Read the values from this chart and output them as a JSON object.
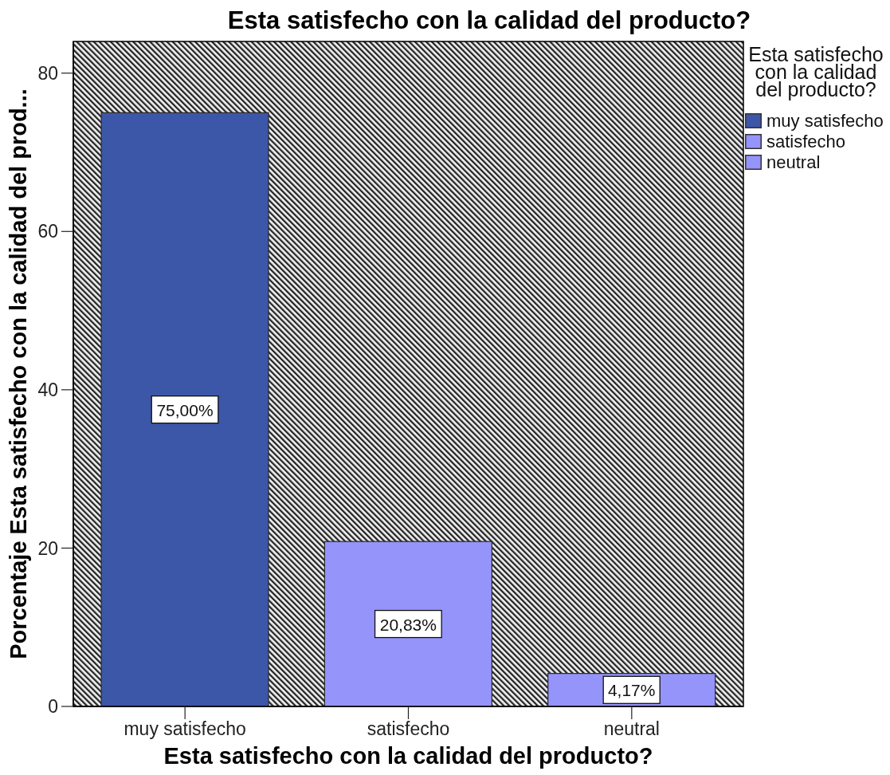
{
  "chart_data": {
    "type": "bar",
    "title": "Esta satisfecho con la calidad del producto?",
    "xlabel": "Esta satisfecho con la calidad del producto?",
    "ylabel": "Porcentaje Esta satisfecho con la calidad del prod...",
    "legend_title": "Esta satisfecho con la calidad del producto?",
    "categories": [
      "muy satisfecho",
      "satisfecho",
      "neutral"
    ],
    "stacked": true,
    "series": [
      {
        "name": "muy satisfecho",
        "color": "#3c56a8",
        "values": [
          75,
          null,
          null
        ],
        "value_labels": [
          "75,00%",
          null,
          null
        ]
      },
      {
        "name": "satisfecho",
        "color": "#9494fb",
        "values": [
          null,
          20.83,
          null
        ],
        "value_labels": [
          null,
          "20,83%",
          null
        ]
      },
      {
        "name": "neutral",
        "color": "#9494fb",
        "values": [
          null,
          null,
          4.17
        ],
        "value_labels": [
          null,
          null,
          "4,17%"
        ]
      }
    ],
    "ylim": [
      0,
      84
    ],
    "yticks": [
      0,
      20,
      40,
      60,
      80
    ],
    "legend": "right"
  }
}
